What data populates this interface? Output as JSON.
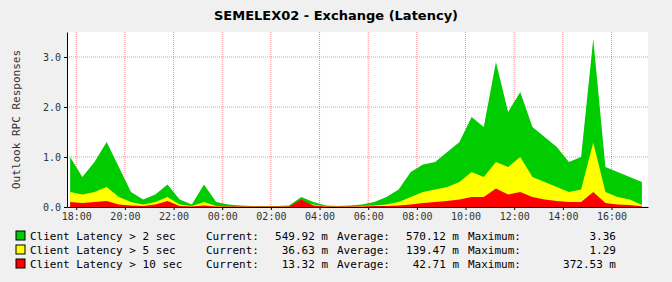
{
  "chart_data": {
    "type": "area",
    "title": "SEMELEX02 - Exchange (Latency)",
    "y_label": "Outlook RPC Responses",
    "x": [
      17.75,
      18.25,
      18.75,
      19.25,
      19.75,
      20.25,
      20.75,
      21.25,
      21.75,
      22.25,
      22.75,
      23.25,
      23.75,
      24.25,
      24.75,
      25.25,
      25.75,
      26.25,
      26.75,
      27.25,
      27.75,
      28.25,
      28.75,
      29.25,
      29.75,
      30.25,
      30.75,
      31.25,
      31.75,
      32.25,
      32.75,
      33.25,
      33.75,
      34.25,
      34.75,
      35.25,
      35.75,
      36.25,
      36.75,
      37.25,
      37.75,
      38.25,
      38.75,
      39.25,
      39.75,
      40.25,
      40.75,
      41.25
    ],
    "xlim": [
      17.62,
      41.5
    ],
    "xticks": [
      {
        "value": 18,
        "label": "18:00"
      },
      {
        "value": 20,
        "label": "20:00"
      },
      {
        "value": 22,
        "label": "22:00"
      },
      {
        "value": 24,
        "label": "00:00"
      },
      {
        "value": 26,
        "label": "02:00"
      },
      {
        "value": 28,
        "label": "04:00"
      },
      {
        "value": 30,
        "label": "06:00"
      },
      {
        "value": 32,
        "label": "08:00"
      },
      {
        "value": 34,
        "label": "10:00"
      },
      {
        "value": 36,
        "label": "12:00"
      },
      {
        "value": 38,
        "label": "14:00"
      },
      {
        "value": 40,
        "label": "16:00"
      }
    ],
    "ylim": [
      0,
      3.5
    ],
    "yticks": [
      {
        "value": 0,
        "label": "0.0"
      },
      {
        "value": 1,
        "label": "1.0"
      },
      {
        "value": 2,
        "label": "2.0"
      },
      {
        "value": 3,
        "label": "3.0"
      }
    ],
    "grid": true,
    "stacked": false,
    "stat_labels": [
      "Current:",
      "Average:",
      "Maximum:"
    ],
    "series": [
      {
        "name": "Client Latency > 2 sec",
        "color": "#00cc00",
        "current": "549.92 m",
        "average": "570.12 m",
        "maximum": "3.36",
        "values": [
          1.0,
          0.6,
          0.9,
          1.3,
          0.8,
          0.3,
          0.15,
          0.25,
          0.45,
          0.15,
          0.05,
          0.45,
          0.1,
          0.05,
          0.03,
          0.02,
          0.02,
          0.02,
          0.03,
          0.2,
          0.1,
          0.03,
          0.02,
          0.03,
          0.05,
          0.1,
          0.2,
          0.35,
          0.7,
          0.85,
          0.9,
          1.1,
          1.3,
          1.8,
          1.6,
          2.9,
          1.9,
          2.3,
          1.6,
          1.4,
          1.2,
          0.9,
          1.0,
          3.36,
          0.8,
          0.7,
          0.6,
          0.5
        ]
      },
      {
        "name": "Client Latency > 5 sec",
        "color": "#ffff00",
        "current": "36.63 m",
        "average": "139.47 m",
        "maximum": "1.29",
        "values": [
          0.3,
          0.25,
          0.3,
          0.4,
          0.2,
          0.1,
          0.05,
          0.1,
          0.2,
          0.05,
          0.02,
          0.1,
          0.02,
          0.01,
          0.01,
          0.01,
          0.01,
          0.01,
          0.01,
          0.1,
          0.05,
          0.01,
          0.01,
          0.01,
          0.02,
          0.03,
          0.05,
          0.1,
          0.2,
          0.3,
          0.35,
          0.4,
          0.5,
          0.7,
          0.6,
          0.9,
          0.8,
          1.0,
          0.6,
          0.5,
          0.4,
          0.3,
          0.35,
          1.29,
          0.3,
          0.2,
          0.15,
          0.04
        ]
      },
      {
        "name": "Client Latency > 10 sec",
        "color": "#ff0000",
        "current": "13.32 m",
        "average": "42.71 m",
        "maximum": "372.53 m",
        "values": [
          0.1,
          0.08,
          0.1,
          0.12,
          0.05,
          0.03,
          0.02,
          0.05,
          0.12,
          0.02,
          0.01,
          0.03,
          0.01,
          0.01,
          0.01,
          0.01,
          0.01,
          0.01,
          0.01,
          0.15,
          0.03,
          0.01,
          0.01,
          0.01,
          0.01,
          0.02,
          0.02,
          0.03,
          0.05,
          0.08,
          0.1,
          0.12,
          0.15,
          0.2,
          0.2,
          0.37,
          0.25,
          0.3,
          0.2,
          0.15,
          0.12,
          0.1,
          0.1,
          0.3,
          0.08,
          0.05,
          0.04,
          0.013
        ]
      }
    ]
  }
}
